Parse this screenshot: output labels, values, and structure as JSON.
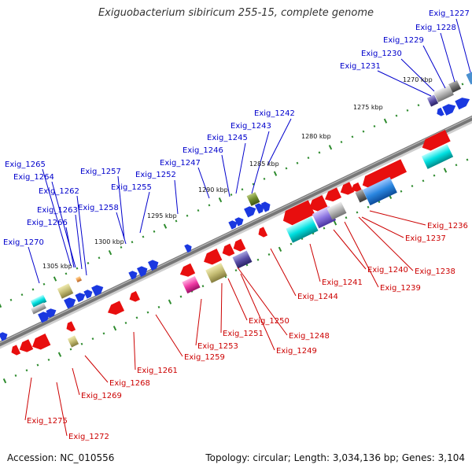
{
  "title": "Exiguobacterium sibiricum 255-15, complete genome",
  "footer": {
    "accession": "Accession: NC_010556",
    "summary": "Topology: circular; Length: 3,034,136 bp; Genes: 3,104"
  },
  "colors": {
    "backbone": "#777777",
    "forward_label": "#0000cc",
    "reverse_label": "#cc0000",
    "tick": "#2e8b2e"
  },
  "ticks": [
    "1270 kbp",
    "1275 kbp",
    "1280 kbp",
    "1285 kbp",
    "1290 kbp",
    "1295 kbp",
    "1300 kbp",
    "1305 kbp"
  ],
  "forward_labels": [
    "Exig_1227",
    "Exig_1228",
    "Exig_1229",
    "Exig_1230",
    "Exig_1231",
    "Exig_1242",
    "Exig_1243",
    "Exig_1245",
    "Exig_1246",
    "Exig_1247",
    "Exig_1252",
    "Exig_1255",
    "Exig_1257",
    "Exig_1258",
    "Exig_1262",
    "Exig_1263",
    "Exig_1264",
    "Exig_1265",
    "Exig_1266",
    "Exig_1270"
  ],
  "reverse_labels": [
    "Exig_1236",
    "Exig_1237",
    "Exig_1238",
    "Exig_1239",
    "Exig_1240",
    "Exig_1241",
    "Exig_1244",
    "Exig_1248",
    "Exig_1249",
    "Exig_1250",
    "Exig_1251",
    "Exig_1253",
    "Exig_1259",
    "Exig_1261",
    "Exig_1268",
    "Exig_1269",
    "Exig_1272",
    "Exig_1275"
  ]
}
